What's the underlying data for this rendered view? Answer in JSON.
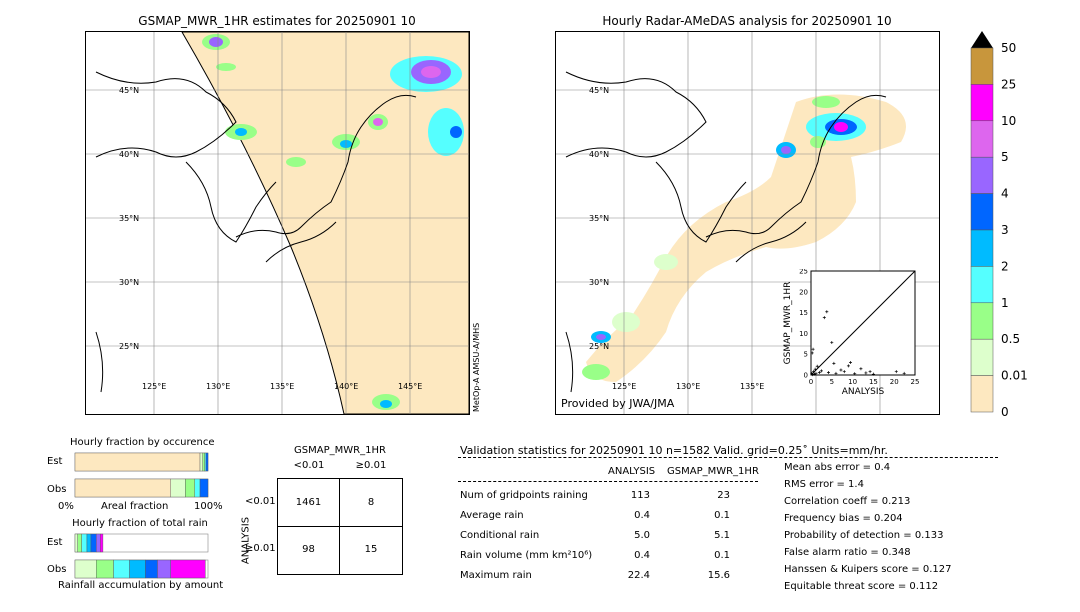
{
  "left_map": {
    "title": "GSMAP_MWR_1HR estimates for 20250901 10",
    "lat_labels": [
      "45°N",
      "40°N",
      "35°N",
      "30°N",
      "25°N"
    ],
    "lon_labels": [
      "125°E",
      "130°E",
      "135°E",
      "140°E",
      "145°E"
    ],
    "sensor_label": "MetOp-A AMSU-A/MHS"
  },
  "right_map": {
    "title": "Hourly Radar-AMeDAS analysis for 20250901 10",
    "lat_labels": [
      "45°N",
      "40°N",
      "35°N",
      "30°N",
      "25°N"
    ],
    "lon_labels": [
      "125°E",
      "130°E",
      "135°E"
    ],
    "provider": "Provided by JWA/JMA"
  },
  "colorbar": {
    "labels": [
      "50",
      "25",
      "10",
      "5",
      "4",
      "3",
      "2",
      "1",
      "0.5",
      "0.01",
      "0"
    ],
    "colors": [
      "#c8963c",
      "#ff00ff",
      "#dd66ee",
      "#9966ff",
      "#0066ff",
      "#00bbff",
      "#55ffff",
      "#99ff88",
      "#ddffcc",
      "#fde8c0"
    ]
  },
  "chart_data": [
    {
      "type": "scatter",
      "title": "",
      "xlabel": "ANALYSIS",
      "ylabel": "GSMAP_MWR_1HR",
      "xlim": [
        0,
        25
      ],
      "ylim": [
        0,
        25
      ],
      "xticks": [
        "0",
        "5",
        "10",
        "15",
        "20",
        "25"
      ],
      "yticks": [
        "0",
        "5",
        "10",
        "15",
        "20",
        "25"
      ],
      "points": [
        [
          0.2,
          0.3
        ],
        [
          0.4,
          0.1
        ],
        [
          0.6,
          0.8
        ],
        [
          0.8,
          0.2
        ],
        [
          1.0,
          1.4
        ],
        [
          1.2,
          0.4
        ],
        [
          0.3,
          5.3
        ],
        [
          0.5,
          6.2
        ],
        [
          1.5,
          2.1
        ],
        [
          2.0,
          0.6
        ],
        [
          2.5,
          1.0
        ],
        [
          3.2,
          13.8
        ],
        [
          3.8,
          15.2
        ],
        [
          4.2,
          0.6
        ],
        [
          5.0,
          7.8
        ],
        [
          5.5,
          2.8
        ],
        [
          6.0,
          0.4
        ],
        [
          7.2,
          1.2
        ],
        [
          8.0,
          0.8
        ],
        [
          9.0,
          2.2
        ],
        [
          9.5,
          3.0
        ],
        [
          10.5,
          0.3
        ],
        [
          12.0,
          1.5
        ],
        [
          13.2,
          0.5
        ],
        [
          14.2,
          0.8
        ],
        [
          15.0,
          0.2
        ],
        [
          20.5,
          0.8
        ],
        [
          22.4,
          0.4
        ]
      ]
    },
    {
      "type": "bar",
      "title": "Hourly fraction by occurence",
      "categories": [
        "Est",
        "Obs"
      ],
      "xlabel": "Areal fraction",
      "x_left": "0%",
      "x_right": "100%",
      "series": [
        {
          "values": [
            0.94,
            0.72
          ]
        },
        {
          "values": [
            0.02,
            0.11
          ]
        },
        {
          "values": [
            0.015,
            0.07
          ]
        },
        {
          "values": [
            0.01,
            0.04
          ]
        },
        {
          "values": [
            0.015,
            0.06
          ]
        }
      ]
    },
    {
      "type": "bar",
      "title": "Hourly fraction of total rain",
      "categories": [
        "Est",
        "Obs"
      ],
      "xlabel": "Rainfall accumulation by amount",
      "series": [
        {
          "values": [
            0.02,
            0.16
          ]
        },
        {
          "values": [
            0.03,
            0.13
          ]
        },
        {
          "values": [
            0.04,
            0.12
          ]
        },
        {
          "values": [
            0.03,
            0.12
          ]
        },
        {
          "values": [
            0.04,
            0.09
          ]
        },
        {
          "values": [
            0.03,
            0.1
          ]
        },
        {
          "values": [
            0.02,
            0.26
          ]
        }
      ]
    }
  ],
  "contingency": {
    "title": "GSMAP_MWR_1HR",
    "col_headers": [
      "<0.01",
      "≥0.01"
    ],
    "row_title": "ANALYSIS",
    "row_headers": [
      "<0.01",
      "≥0.01"
    ],
    "cells": [
      [
        "1461",
        "8"
      ],
      [
        "98",
        "15"
      ]
    ]
  },
  "validation": {
    "header": "Validation statistics for 20250901 10  n=1582 Valid. grid=0.25˚ Units=mm/hr.",
    "col_analysis": "ANALYSIS",
    "col_gsmap": "GSMAP_MWR_1HR",
    "rows": [
      {
        "label": "Num of gridpoints raining",
        "analysis": "113",
        "gsmap": "23"
      },
      {
        "label": "Average rain",
        "analysis": "0.4",
        "gsmap": "0.1"
      },
      {
        "label": "Conditional rain",
        "analysis": "5.0",
        "gsmap": "5.1"
      },
      {
        "label": "Rain volume (mm km²10⁶)",
        "analysis": "0.4",
        "gsmap": "0.1"
      },
      {
        "label": "Maximum rain",
        "analysis": "22.4",
        "gsmap": "15.6"
      }
    ],
    "scores": [
      "Mean abs error =    0.4",
      "RMS error =    1.4",
      "Correlation coeff =  0.213",
      "Frequency bias =  0.204",
      "Probability of detection =  0.133",
      "False alarm ratio =  0.348",
      "Hanssen & Kuipers score =  0.127",
      "Equitable threat score =  0.112"
    ]
  }
}
